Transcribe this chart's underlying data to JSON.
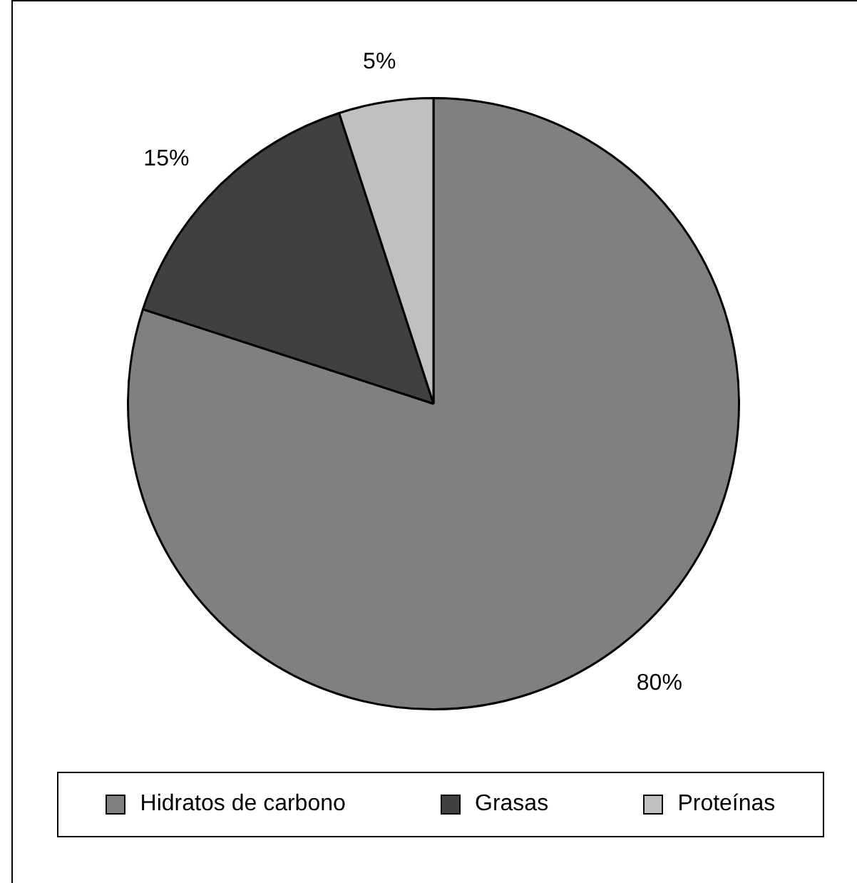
{
  "chart_data": {
    "type": "pie",
    "categories": [
      "Hidratos de carbono",
      "Grasas",
      "Proteínas"
    ],
    "values": [
      80,
      15,
      5
    ],
    "colors": [
      "#808080",
      "#404040",
      "#c0c0c0"
    ],
    "value_labels": [
      "80%",
      "15%",
      "5%"
    ],
    "legend": "bottom"
  }
}
